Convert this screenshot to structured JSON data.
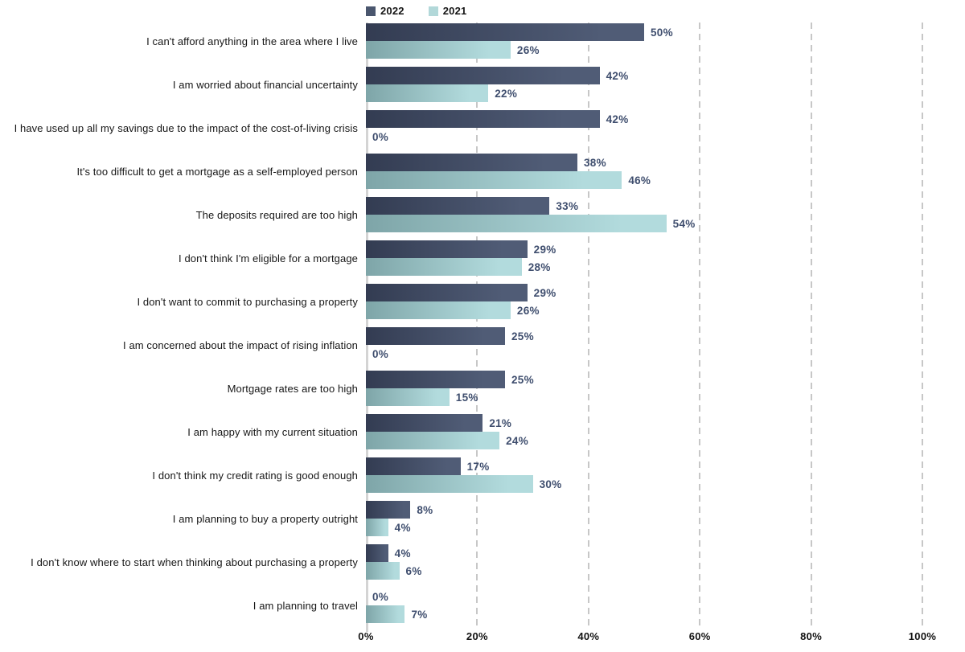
{
  "chart_data": {
    "type": "bar",
    "orientation": "horizontal",
    "title": "",
    "categories": [
      "I can't afford anything in the area where I live",
      "I am worried about financial uncertainty",
      "I have used up all my savings due to the impact of the cost-of-living crisis",
      "It's too difficult to get a mortgage as a self-employed person",
      "The deposits required are too high",
      "I don't think I'm eligible for a mortgage",
      "I don't want to commit to purchasing a property",
      "I am concerned about the impact of rising inflation",
      "Mortgage rates are too high",
      "I am happy with my current situation",
      "I don't think my credit rating is good enough",
      "I am planning to buy a property outright",
      "I don't know where to start when thinking about purchasing a property",
      "I am planning to travel"
    ],
    "series": [
      {
        "name": "2022",
        "values": [
          50,
          42,
          42,
          38,
          33,
          29,
          29,
          25,
          25,
          21,
          17,
          8,
          4,
          0
        ],
        "color_start": "#333c52",
        "color_end": "#505c76",
        "legend_color": "#4a566e"
      },
      {
        "name": "2021",
        "values": [
          26,
          22,
          0,
          46,
          54,
          28,
          26,
          0,
          15,
          24,
          30,
          4,
          6,
          7
        ],
        "color_start": "#7ea5a8",
        "color_end": "#b2dbdd",
        "legend_color": "#b2d8d9"
      }
    ],
    "value_suffix": "%",
    "xlabel": "",
    "ylabel": "",
    "xlim": [
      0,
      100
    ],
    "x_ticks": [
      "0%",
      "20%",
      "40%",
      "60%",
      "80%",
      "100%"
    ],
    "grid": "vertical-dashed",
    "legend_position": "top",
    "colors": {
      "value_label": "#3f4e6e",
      "tick_label": "#121212",
      "category_label": "#161616",
      "gridline": "#c7c7c7",
      "axis_line": "#d4d4d4",
      "background": "#ffffff"
    }
  }
}
